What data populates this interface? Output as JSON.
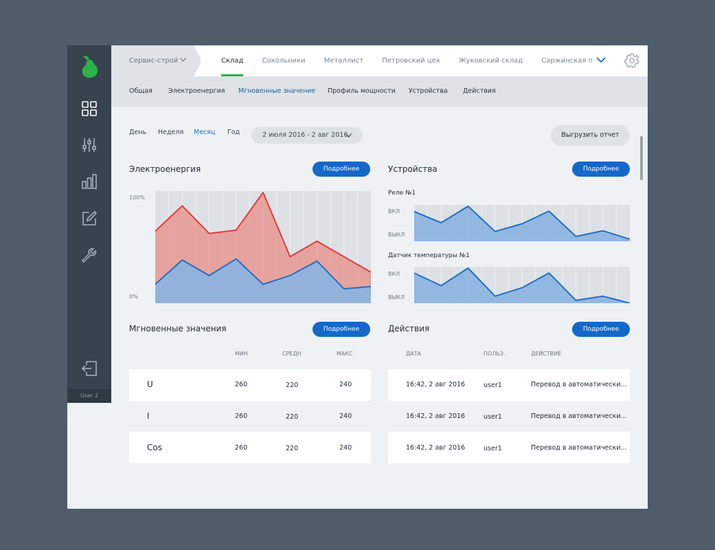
{
  "sidebar": {
    "icons": [
      "pear-logo-icon",
      "dashboard-grid-icon",
      "sliders-icon",
      "bar-chart-icon",
      "edit-icon",
      "wrench-icon",
      "logout-icon"
    ],
    "user": "User 2",
    "colors": {
      "logo": "#2db34a",
      "bg": "#37434d"
    }
  },
  "topbar": {
    "company": "Сервис-строй",
    "tabs": [
      "Склад",
      "Сокольники",
      "Металлист",
      "Петровский цех",
      "Жуковский склад",
      "Саржинская погрузоч"
    ],
    "active_tab": "Склад"
  },
  "subbar": {
    "tabs": [
      "Общая",
      "Электроенергия",
      "Мгновенные значение",
      "Профиль мощности",
      "Устройства",
      "Действия"
    ],
    "active_tab": "Мгновенные значение"
  },
  "period": {
    "options": [
      "День",
      "Неделя",
      "Месяц",
      "Год"
    ],
    "active": "Месяц",
    "range": "2 июля 2016 - 2 авг 2016"
  },
  "export_label": "Выгрузить отчет",
  "more_label": "Подробнее",
  "energy": {
    "title": "Электроенергия",
    "y_top": "100%",
    "y_bottom": "0%"
  },
  "devices": {
    "title": "Устройства",
    "relay": {
      "label": "Реле №1",
      "on": "ВКЛ",
      "off": "ВЫКЛ"
    },
    "temp": {
      "label": "Датчик температуры №1",
      "on": "ВКЛ",
      "off": "ВЫКЛ"
    }
  },
  "instant": {
    "title": "Мгновенные значения",
    "headers": [
      "МИН",
      "СРЕДН",
      "МАКС"
    ],
    "rows": [
      {
        "name": "U",
        "min": "260",
        "avg": "220",
        "max": "240"
      },
      {
        "name": "I",
        "min": "260",
        "avg": "220",
        "max": "240"
      },
      {
        "name": "Cos",
        "min": "260",
        "avg": "220",
        "max": "240"
      }
    ]
  },
  "actions": {
    "title": "Действия",
    "headers": [
      "ДАТА",
      "ПОЛЬЗ.",
      "ДЕЙСТВИЕ"
    ],
    "rows": [
      {
        "date": "16:42, 2 авг 2016",
        "user": "user1",
        "action": "Перевод в автоматически..."
      },
      {
        "date": "16:42, 2 авг 2016",
        "user": "user1",
        "action": "Перевод в автоматически..."
      },
      {
        "date": "16:42, 2 авг 2016",
        "user": "user1",
        "action": "Перевод в автоматически..."
      }
    ]
  },
  "chart_data": [
    {
      "type": "area",
      "ylim": [
        0,
        100
      ],
      "series": [
        {
          "values": [
            65,
            88,
            63,
            66,
            100,
            42,
            56,
            42,
            28
          ],
          "color": "#e03c3c"
        },
        {
          "values": [
            17,
            39,
            25,
            40,
            17,
            25,
            38,
            13,
            15
          ],
          "color": "#1f6fc0"
        }
      ]
    },
    {
      "type": "area",
      "series": [
        {
          "values": [
            85,
            53,
            100,
            28,
            50,
            86,
            14,
            30,
            6
          ],
          "color": "#1f6fc0"
        }
      ]
    },
    {
      "type": "area",
      "series": [
        {
          "values": [
            86,
            50,
            100,
            20,
            44,
            86,
            8,
            20,
            0
          ],
          "color": "#1f6fc0"
        }
      ]
    }
  ]
}
